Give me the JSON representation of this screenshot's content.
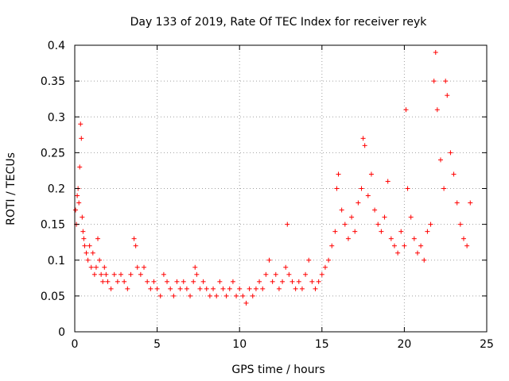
{
  "chart_data": {
    "type": "scatter",
    "title": "Day 133 of 2019, Rate Of TEC Index for receiver reyk",
    "xlabel": "GPS time / hours",
    "ylabel": "ROTI / TECUs",
    "xlim": [
      0,
      25
    ],
    "ylim": [
      0,
      0.4
    ],
    "xticks": [
      0,
      5,
      10,
      15,
      20,
      25
    ],
    "xtick_labels": [
      "0",
      "5",
      "10",
      "15",
      "20",
      "25"
    ],
    "yticks": [
      0,
      0.05,
      0.1,
      0.15,
      0.2,
      0.25,
      0.3,
      0.35,
      0.4
    ],
    "ytick_labels": [
      "0",
      "0.05",
      "0.1",
      "0.15",
      "0.2",
      "0.25",
      "0.3",
      "0.35",
      "0.4"
    ],
    "grid": true,
    "marker": "plus",
    "color": "#ff0000",
    "series": [
      {
        "x": [
          0.05,
          0.1,
          0.15,
          0.2,
          0.25,
          0.3,
          0.35,
          0.4,
          0.45,
          0.5,
          0.55,
          0.6,
          0.7,
          0.8,
          0.9,
          1.0,
          1.1,
          1.2,
          1.3,
          1.4,
          1.5,
          1.6,
          1.7,
          1.8,
          1.9,
          2.0,
          2.2,
          2.4,
          2.6,
          2.8,
          3.0,
          3.2,
          3.4,
          3.6,
          3.7,
          3.8,
          4.0,
          4.2,
          4.4,
          4.6,
          4.8,
          5.0,
          5.2,
          5.4,
          5.6,
          5.8,
          6.0,
          6.2,
          6.4,
          6.6,
          6.8,
          7.0,
          7.2,
          7.3,
          7.4,
          7.6,
          7.8,
          8.0,
          8.2,
          8.4,
          8.6,
          8.8,
          9.0,
          9.2,
          9.4,
          9.6,
          9.8,
          10.0,
          10.2,
          10.4,
          10.6,
          10.8,
          11.0,
          11.2,
          11.4,
          11.6,
          11.8,
          12.0,
          12.2,
          12.4,
          12.6,
          12.8,
          12.9,
          13.0,
          13.2,
          13.4,
          13.6,
          13.8,
          14.0,
          14.2,
          14.4,
          14.6,
          14.8,
          15.0,
          15.2,
          15.4,
          15.6,
          15.8,
          15.9,
          16.0,
          16.2,
          16.4,
          16.6,
          16.8,
          17.0,
          17.2,
          17.4,
          17.5,
          17.6,
          17.8,
          18.0,
          18.2,
          18.4,
          18.6,
          18.8,
          19.0,
          19.2,
          19.4,
          19.6,
          19.8,
          20.0,
          20.1,
          20.2,
          20.4,
          20.6,
          20.8,
          21.0,
          21.2,
          21.4,
          21.6,
          21.8,
          21.9,
          22.0,
          22.2,
          22.4,
          22.5,
          22.6,
          22.8,
          23.0,
          23.2,
          23.4,
          23.6,
          23.8,
          24.0
        ],
        "y": [
          0.17,
          0.15,
          0.19,
          0.2,
          0.18,
          0.23,
          0.29,
          0.27,
          0.16,
          0.14,
          0.13,
          0.12,
          0.11,
          0.1,
          0.12,
          0.09,
          0.11,
          0.08,
          0.09,
          0.13,
          0.1,
          0.08,
          0.07,
          0.09,
          0.08,
          0.07,
          0.06,
          0.08,
          0.07,
          0.08,
          0.07,
          0.06,
          0.08,
          0.13,
          0.12,
          0.09,
          0.08,
          0.09,
          0.07,
          0.06,
          0.07,
          0.06,
          0.05,
          0.08,
          0.07,
          0.06,
          0.05,
          0.07,
          0.06,
          0.07,
          0.06,
          0.05,
          0.07,
          0.09,
          0.08,
          0.06,
          0.07,
          0.06,
          0.05,
          0.06,
          0.05,
          0.07,
          0.06,
          0.05,
          0.06,
          0.07,
          0.05,
          0.06,
          0.05,
          0.04,
          0.06,
          0.05,
          0.06,
          0.07,
          0.06,
          0.08,
          0.1,
          0.07,
          0.08,
          0.06,
          0.07,
          0.09,
          0.15,
          0.08,
          0.07,
          0.06,
          0.07,
          0.06,
          0.08,
          0.1,
          0.07,
          0.06,
          0.07,
          0.08,
          0.09,
          0.1,
          0.12,
          0.14,
          0.2,
          0.22,
          0.17,
          0.15,
          0.13,
          0.16,
          0.14,
          0.18,
          0.2,
          0.27,
          0.26,
          0.19,
          0.22,
          0.17,
          0.15,
          0.14,
          0.16,
          0.21,
          0.13,
          0.12,
          0.11,
          0.14,
          0.12,
          0.31,
          0.2,
          0.16,
          0.13,
          0.11,
          0.12,
          0.1,
          0.14,
          0.15,
          0.35,
          0.39,
          0.31,
          0.24,
          0.2,
          0.35,
          0.33,
          0.25,
          0.22,
          0.18,
          0.15,
          0.13,
          0.12,
          0.18
        ]
      }
    ]
  }
}
